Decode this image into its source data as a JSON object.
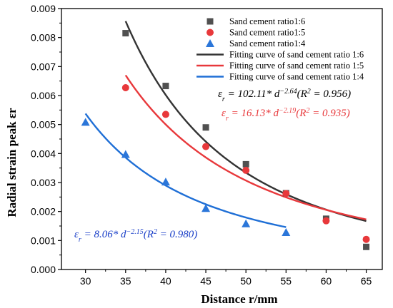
{
  "chart_data": {
    "type": "scatter",
    "xlabel": "Distance r/mm",
    "ylabel": "Radial strain peak εr",
    "xlim": [
      27,
      67
    ],
    "ylim": [
      0,
      0.009
    ],
    "x_ticks": [
      30,
      35,
      40,
      45,
      50,
      55,
      60,
      65
    ],
    "x_tick_labels": [
      "30",
      "35",
      "40",
      "45",
      "50",
      "55",
      "60",
      "65"
    ],
    "y_ticks": [
      0,
      0.001,
      0.002,
      0.003,
      0.004,
      0.005,
      0.006,
      0.007,
      0.008,
      0.009
    ],
    "y_tick_labels": [
      "0.000",
      "0.001",
      "0.002",
      "0.003",
      "0.004",
      "0.005",
      "0.006",
      "0.007",
      "0.008",
      "0.009"
    ],
    "legend_position": "top-right",
    "series": [
      {
        "name": "Sand cement ratio1:6",
        "marker": "square",
        "color": "#505050",
        "x": [
          35,
          40,
          45,
          50,
          55,
          60,
          65
        ],
        "y": [
          0.00815,
          0.00633,
          0.0049,
          0.00363,
          0.00263,
          0.00175,
          0.00078
        ]
      },
      {
        "name": "Sand cement ratio1:5",
        "marker": "circle",
        "color": "#e8383b",
        "x": [
          35,
          40,
          45,
          50,
          55,
          60,
          65
        ],
        "y": [
          0.00627,
          0.00535,
          0.00424,
          0.00342,
          0.00262,
          0.00168,
          0.00104
        ]
      },
      {
        "name": "Sand cement ratio1:4",
        "marker": "triangle",
        "color": "#2b76d9",
        "x": [
          30,
          35,
          40,
          45,
          50,
          55
        ],
        "y": [
          0.00508,
          0.00397,
          0.00302,
          0.00211,
          0.00158,
          0.00128
        ]
      }
    ],
    "fits": [
      {
        "name": "Fitting curve of sand cement ratio 1:6",
        "color": "#333333",
        "x_range": [
          35,
          65
        ],
        "a": 102.11,
        "b": -2.64,
        "equation": {
          "lhs": "ε",
          "sub": "r",
          "mid": " = 102.11* d",
          "exp": "−2.64",
          "r_pre": "(R",
          "r_exp": "2",
          "r_post": " = 0.956)"
        }
      },
      {
        "name": "Fitting curve of sand cement ratio 1:5",
        "color": "#e8383b",
        "x_range": [
          35,
          65
        ],
        "a": 16.13,
        "b": -2.19,
        "equation": {
          "lhs": "ε",
          "sub": "r",
          "mid": " = 16.13* d",
          "exp": "−2.19",
          "r_pre": "(R",
          "r_exp": "2",
          "r_post": " = 0.935)"
        }
      },
      {
        "name": "Fitting curve of sand cement ratio 1:4",
        "color": "#1f6fd6",
        "x_range": [
          30,
          55
        ],
        "a": 8.06,
        "b": -2.15,
        "equation": {
          "lhs": "ε",
          "sub": "r",
          "mid": " = 8.06* d",
          "exp": "−2.15",
          "r_pre": "(R",
          "r_exp": "2",
          "r_post": " = 0.980)"
        }
      }
    ]
  },
  "colors": {
    "eq_16": "#000000",
    "eq_15": "#e8383b",
    "eq_14": "#1a3fc8"
  }
}
